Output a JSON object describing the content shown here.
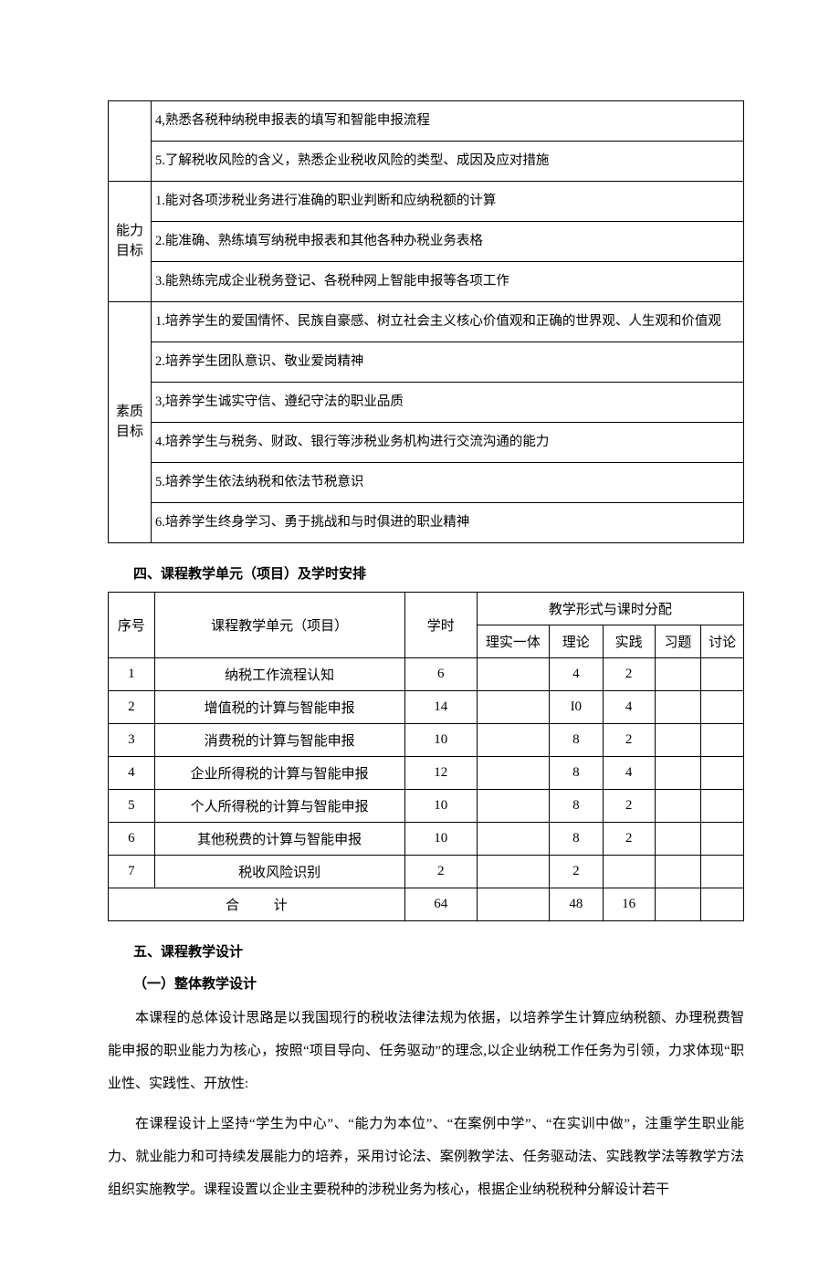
{
  "goals_table": {
    "groups": [
      {
        "label": "",
        "show_label": false,
        "rows": [
          "4,熟悉各税种纳税申报表的填写和智能申报流程",
          "5.了解税收风险的含义，熟悉企业税收风险的类型、成因及应对措施"
        ]
      },
      {
        "label": "能力目标",
        "show_label": true,
        "rows": [
          "1.能对各项涉税业务进行准确的职业判断和应纳税额的计算",
          "2.能准确、熟练填写纳税申报表和其他各种办税业务表格",
          "3.能熟练完成企业税务登记、各税种网上智能申报等各项工作"
        ]
      },
      {
        "label": "素质目标",
        "show_label": true,
        "rows": [
          "1.培养学生的爱国情怀、民族自豪感、树立社会主义核心价值观和正确的世界观、人生观和价值观",
          "2.培养学生团队意识、敬业爱岗精神",
          "3,培养学生诚实守信、遵纪守法的职业品质",
          "4.培养学生与税务、财政、银行等涉税业务机构进行交流沟通的能力",
          "5.培养学生依法纳税和依法节税意识",
          "6.培养学生终身学习、勇于挑战和与时俱进的职业精神"
        ]
      }
    ]
  },
  "heading4": "四、课程教学单元（项目）及学时安排",
  "schedule_table": {
    "header": {
      "col_seq": "序号",
      "col_unit": "课程教学单元（项目）",
      "col_hours": "学时",
      "col_forms": "教学形式与课时分配",
      "sub1": "理实一体",
      "sub2": "理论",
      "sub3": "实践",
      "sub4": "习题",
      "sub5": "讨论"
    },
    "rows": [
      {
        "seq": "1",
        "unit": "纳税工作流程认知",
        "hours": "6",
        "c1": "",
        "c2": "4",
        "c3": "2",
        "c4": "",
        "c5": ""
      },
      {
        "seq": "2",
        "unit": "增值税的计算与智能申报",
        "hours": "14",
        "c1": "",
        "c2": "I0",
        "c3": "4",
        "c4": "",
        "c5": ""
      },
      {
        "seq": "3",
        "unit": "消费税的计算与智能申报",
        "hours": "10",
        "c1": "",
        "c2": "8",
        "c3": "2",
        "c4": "",
        "c5": ""
      },
      {
        "seq": "4",
        "unit": "企业所得税的计算与智能申报",
        "hours": "12",
        "c1": "",
        "c2": "8",
        "c3": "4",
        "c4": "",
        "c5": ""
      },
      {
        "seq": "5",
        "unit": "个人所得税的计算与智能申报",
        "hours": "10",
        "c1": "",
        "c2": "8",
        "c3": "2",
        "c4": "",
        "c5": ""
      },
      {
        "seq": "6",
        "unit": "其他税费的计算与智能申报",
        "hours": "10",
        "c1": "",
        "c2": "8",
        "c3": "2",
        "c4": "",
        "c5": ""
      },
      {
        "seq": "7",
        "unit": "税收风险识别",
        "hours": "2",
        "c1": "",
        "c2": "2",
        "c3": "",
        "c4": "",
        "c5": ""
      }
    ],
    "total": {
      "label": "合计",
      "hours": "64",
      "c1": "",
      "c2": "48",
      "c3": "16",
      "c4": "",
      "c5": ""
    }
  },
  "heading5": "五、课程教学设计",
  "heading5_1": "（一）整体教学设计",
  "para1": "本课程的总体设计思路是以我国现行的税收法律法规为依据，以培养学生计算应纳税额、办理税费智能申报的职业能力为核心，按照“项目导向、任务驱动”的理念,以企业纳税工作任务为引领，力求体现“职业性、实践性、开放性:",
  "para2": "在课程设计上坚持“学生为中心”、“能力为本位”、“在案例中学”、“在实训中做”，注重学生职业能力、就业能力和可持续发展能力的培养，采用讨论法、案例教学法、任务驱动法、实践教学法等教学方法组织实施教学。课程设置以企业主要税种的涉税业务为核心，根据企业纳税税种分解设计若干"
}
